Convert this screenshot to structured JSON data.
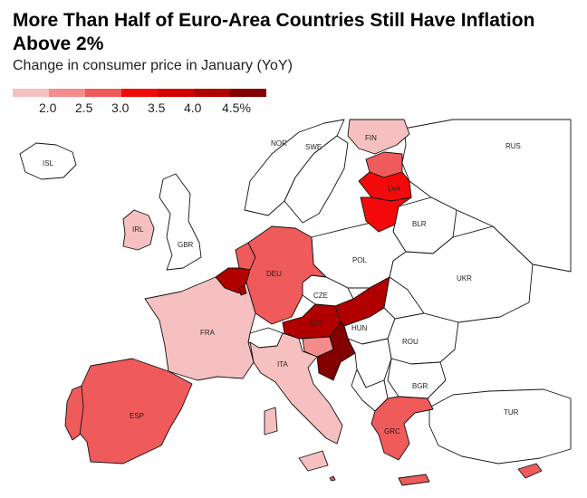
{
  "title": "More Than Half of Euro-Area Countries Still Have Inflation Above 2%",
  "subtitle": "Change in consumer price in January (YoY)",
  "legend": {
    "colors": [
      "#f7c0c0",
      "#f48c8c",
      "#ef5a5a",
      "#f20a0a",
      "#d40000",
      "#b00000",
      "#830000"
    ],
    "ticks": [
      "2.0",
      "2.5",
      "3.0",
      "3.5",
      "4.0",
      "4.5%"
    ]
  },
  "map": {
    "labels": {
      "isl": "ISL",
      "nor": "NOR",
      "swe": "SWE",
      "fin": "FIN",
      "rus": "RUS",
      "irl": "IRL",
      "gbr": "GBR",
      "lva": "LVA",
      "blr": "BLR",
      "pol": "POL",
      "deu": "DEU",
      "ukr": "UKR",
      "cze": "CZE",
      "aut": "AUT",
      "hun": "HUN",
      "fra": "FRA",
      "rou": "ROU",
      "ita": "ITA",
      "bgr": "BGR",
      "esp": "ESP",
      "tur": "TUR",
      "grc": "GRC"
    },
    "fills": {
      "fin": "#f7c0c0",
      "est": "#ef5a5a",
      "lva": "#f20a0a",
      "ltu": "#f20a0a",
      "irl": "#f7c0c0",
      "deu": "#ef5a5a",
      "nld": "#ef5a5a",
      "bel": "#b00000",
      "lux": "#b00000",
      "fra": "#f7c0c0",
      "esp": "#ef5a5a",
      "prt": "#ef5a5a",
      "ita": "#f7c0c0",
      "aut": "#b00000",
      "svk": "#b00000",
      "svn": "#f48c8c",
      "hrv": "#830000",
      "grc": "#ef5a5a",
      "cyp": "#ef5a5a",
      "mlt": "#ef5a5a"
    }
  }
}
